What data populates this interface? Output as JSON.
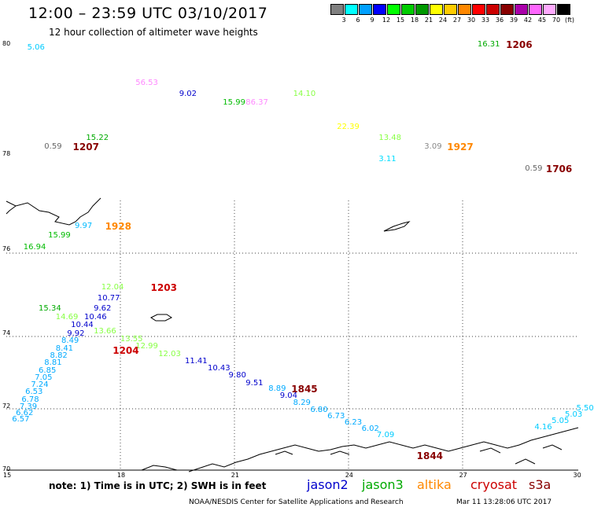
{
  "header": {
    "title": "12:00 – 23:59 UTC 03/10/2017",
    "subtitle": "12 hour collection of altimeter wave heights"
  },
  "legend": {
    "unit": "(ft)",
    "items": [
      {
        "label": "3",
        "color": "#808080"
      },
      {
        "label": "6",
        "color": "#00ffff"
      },
      {
        "label": "9",
        "color": "#00a0ff"
      },
      {
        "label": "12",
        "color": "#0000ff"
      },
      {
        "label": "15",
        "color": "#00ff00"
      },
      {
        "label": "18",
        "color": "#00cc00"
      },
      {
        "label": "21",
        "color": "#009900"
      },
      {
        "label": "24",
        "color": "#ffff00"
      },
      {
        "label": "27",
        "color": "#ffcc00"
      },
      {
        "label": "30",
        "color": "#ff8800"
      },
      {
        "label": "33",
        "color": "#ff0000"
      },
      {
        "label": "36",
        "color": "#cc0000"
      },
      {
        "label": "39",
        "color": "#880000"
      },
      {
        "label": "42",
        "color": "#aa00aa"
      },
      {
        "label": "45",
        "color": "#ff66ff"
      },
      {
        "label": "70",
        "color": "#ffaaff"
      },
      {
        "label": "",
        "color": "#000000"
      }
    ]
  },
  "axes": {
    "lon_labels": [
      "15",
      "18",
      "21",
      "24",
      "27",
      "30"
    ],
    "lat_labels": [
      "80",
      "78",
      "76",
      "74",
      "72",
      "70"
    ]
  },
  "wave_labels": [
    {
      "text": "5.06",
      "color": "#00ccff",
      "lon": 15.55,
      "lat": 79.95
    },
    {
      "text": "56.53",
      "color": "#ff88ff",
      "lon": 18.4,
      "lat": 79.3
    },
    {
      "text": "9.02",
      "color": "#0000cc",
      "lon": 19.55,
      "lat": 79.1
    },
    {
      "text": "15.99",
      "color": "#00bb00",
      "lon": 20.7,
      "lat": 78.95
    },
    {
      "text": "86.37",
      "color": "#ff88ff",
      "lon": 21.3,
      "lat": 78.95
    },
    {
      "text": "14.10",
      "color": "#88ff44",
      "lon": 22.55,
      "lat": 79.1
    },
    {
      "text": "22.39",
      "color": "#ffff00",
      "lon": 23.7,
      "lat": 78.5
    },
    {
      "text": "13.48",
      "color": "#88ff44",
      "lon": 24.8,
      "lat": 78.3
    },
    {
      "text": "3.09",
      "color": "#888888",
      "lon": 26.0,
      "lat": 78.15
    },
    {
      "text": "3.11",
      "color": "#00ddff",
      "lon": 24.8,
      "lat": 77.9
    },
    {
      "text": "0.59",
      "color": "#666666",
      "lon": 16.0,
      "lat": 78.15
    },
    {
      "text": "15.22",
      "color": "#00aa00",
      "lon": 17.1,
      "lat": 78.3
    },
    {
      "text": "16.31",
      "color": "#00aa00",
      "lon": 27.4,
      "lat": 80.0
    },
    {
      "text": "0.59",
      "color": "#666666",
      "lon": 28.65,
      "lat": 77.7
    },
    {
      "text": "9.97",
      "color": "#00bbff",
      "lon": 16.8,
      "lat": 76.5
    },
    {
      "text": "15.99",
      "color": "#00bb00",
      "lon": 16.1,
      "lat": 76.3
    },
    {
      "text": "16.94",
      "color": "#00bb00",
      "lon": 15.45,
      "lat": 76.05
    },
    {
      "text": "12.04",
      "color": "#88ff44",
      "lon": 17.5,
      "lat": 75.1
    },
    {
      "text": "10.77",
      "color": "#0000cc",
      "lon": 17.4,
      "lat": 74.85
    },
    {
      "text": "15.34",
      "color": "#00aa00",
      "lon": 15.85,
      "lat": 74.6
    },
    {
      "text": "9.62",
      "color": "#0000cc",
      "lon": 17.3,
      "lat": 74.6
    },
    {
      "text": "14.69",
      "color": "#88ff44",
      "lon": 16.3,
      "lat": 74.4
    },
    {
      "text": "10.46",
      "color": "#0000cc",
      "lon": 17.05,
      "lat": 74.4
    },
    {
      "text": "10.44",
      "color": "#0000cc",
      "lon": 16.7,
      "lat": 74.2
    },
    {
      "text": "9.92",
      "color": "#0000cc",
      "lon": 16.6,
      "lat": 74.0
    },
    {
      "text": "13.66",
      "color": "#88ff44",
      "lon": 17.3,
      "lat": 74.05
    },
    {
      "text": "13.55",
      "color": "#88ff44",
      "lon": 18.0,
      "lat": 73.85
    },
    {
      "text": "12.99",
      "color": "#88ff44",
      "lon": 18.4,
      "lat": 73.65
    },
    {
      "text": "12.03",
      "color": "#88ff44",
      "lon": 19.0,
      "lat": 73.45
    },
    {
      "text": "11.41",
      "color": "#0000cc",
      "lon": 19.7,
      "lat": 73.25
    },
    {
      "text": "10.43",
      "color": "#0000cc",
      "lon": 20.3,
      "lat": 73.05
    },
    {
      "text": "9.80",
      "color": "#0000cc",
      "lon": 20.85,
      "lat": 72.85
    },
    {
      "text": "9.51",
      "color": "#0000cc",
      "lon": 21.3,
      "lat": 72.65
    },
    {
      "text": "8.89",
      "color": "#00aaff",
      "lon": 21.9,
      "lat": 72.5
    },
    {
      "text": "9.04",
      "color": "#0000cc",
      "lon": 22.2,
      "lat": 72.3
    },
    {
      "text": "8.29",
      "color": "#00aaff",
      "lon": 22.55,
      "lat": 72.1
    },
    {
      "text": "6.80",
      "color": "#00aaff",
      "lon": 23.0,
      "lat": 71.9
    },
    {
      "text": "6.73",
      "color": "#00aaff",
      "lon": 23.45,
      "lat": 71.7
    },
    {
      "text": "6.23",
      "color": "#00aaff",
      "lon": 23.9,
      "lat": 71.5
    },
    {
      "text": "6.02",
      "color": "#00aaff",
      "lon": 24.35,
      "lat": 71.3
    },
    {
      "text": "7.09",
      "color": "#00ccff",
      "lon": 24.75,
      "lat": 71.1
    },
    {
      "text": "8.49",
      "color": "#00aaff",
      "lon": 16.45,
      "lat": 73.8
    },
    {
      "text": "8.41",
      "color": "#00aaff",
      "lon": 16.3,
      "lat": 73.6
    },
    {
      "text": "8.82",
      "color": "#00aaff",
      "lon": 16.15,
      "lat": 73.4
    },
    {
      "text": "8.81",
      "color": "#00aaff",
      "lon": 16.0,
      "lat": 73.2
    },
    {
      "text": "6.85",
      "color": "#00aaff",
      "lon": 15.85,
      "lat": 73.0
    },
    {
      "text": "7.05",
      "color": "#00aaff",
      "lon": 15.75,
      "lat": 72.8
    },
    {
      "text": "7.24",
      "color": "#00aaff",
      "lon": 15.65,
      "lat": 72.6
    },
    {
      "text": "6.53",
      "color": "#00aaff",
      "lon": 15.5,
      "lat": 72.4
    },
    {
      "text": "6.78",
      "color": "#00aaff",
      "lon": 15.4,
      "lat": 72.2
    },
    {
      "text": "7.39",
      "color": "#00aaff",
      "lon": 15.35,
      "lat": 72.0
    },
    {
      "text": "6.62",
      "color": "#00aaff",
      "lon": 15.25,
      "lat": 71.8
    },
    {
      "text": "6.57",
      "color": "#00aaff",
      "lon": 15.15,
      "lat": 71.6
    },
    {
      "text": "4.16",
      "color": "#00ccff",
      "lon": 28.9,
      "lat": 71.35
    },
    {
      "text": "5.05",
      "color": "#00ccff",
      "lon": 29.35,
      "lat": 71.55
    },
    {
      "text": "5.03",
      "color": "#00ccff",
      "lon": 29.7,
      "lat": 71.75
    },
    {
      "text": "5.50",
      "color": "#00ccff",
      "lon": 30.0,
      "lat": 71.95
    }
  ],
  "time_labels": [
    {
      "text": "1206",
      "color": "#880000",
      "lon": 28.15,
      "lat": 80.0
    },
    {
      "text": "1207",
      "color": "#880000",
      "lon": 16.75,
      "lat": 78.15
    },
    {
      "text": "1927",
      "color": "#ff8800",
      "lon": 26.6,
      "lat": 78.15
    },
    {
      "text": "1706",
      "color": "#880000",
      "lon": 29.2,
      "lat": 77.7
    },
    {
      "text": "1928",
      "color": "#ff8800",
      "lon": 17.6,
      "lat": 76.5
    },
    {
      "text": "1203",
      "color": "#cc0000",
      "lon": 18.8,
      "lat": 75.1
    },
    {
      "text": "1204",
      "color": "#cc0000",
      "lon": 17.8,
      "lat": 73.55
    },
    {
      "text": "1845",
      "color": "#880000",
      "lon": 22.5,
      "lat": 72.5
    },
    {
      "text": "1844",
      "color": "#880000",
      "lon": 25.8,
      "lat": 70.45
    }
  ],
  "footer": {
    "note": "note:  1) Time is in UTC;  2) SWH is in feet",
    "satellites": [
      {
        "name": "jason2",
        "color": "#0000cc"
      },
      {
        "name": "jason3",
        "color": "#00aa00"
      },
      {
        "name": "altika",
        "color": "#ff8800"
      },
      {
        "name": "cryosat",
        "color": "#cc0000"
      },
      {
        "name": "s3a",
        "color": "#880000"
      }
    ],
    "credit": "NOAA/NESDIS Center for Satellite Applications and Research",
    "stamp": "Mar 11 13:28:06 UTC 2017"
  }
}
